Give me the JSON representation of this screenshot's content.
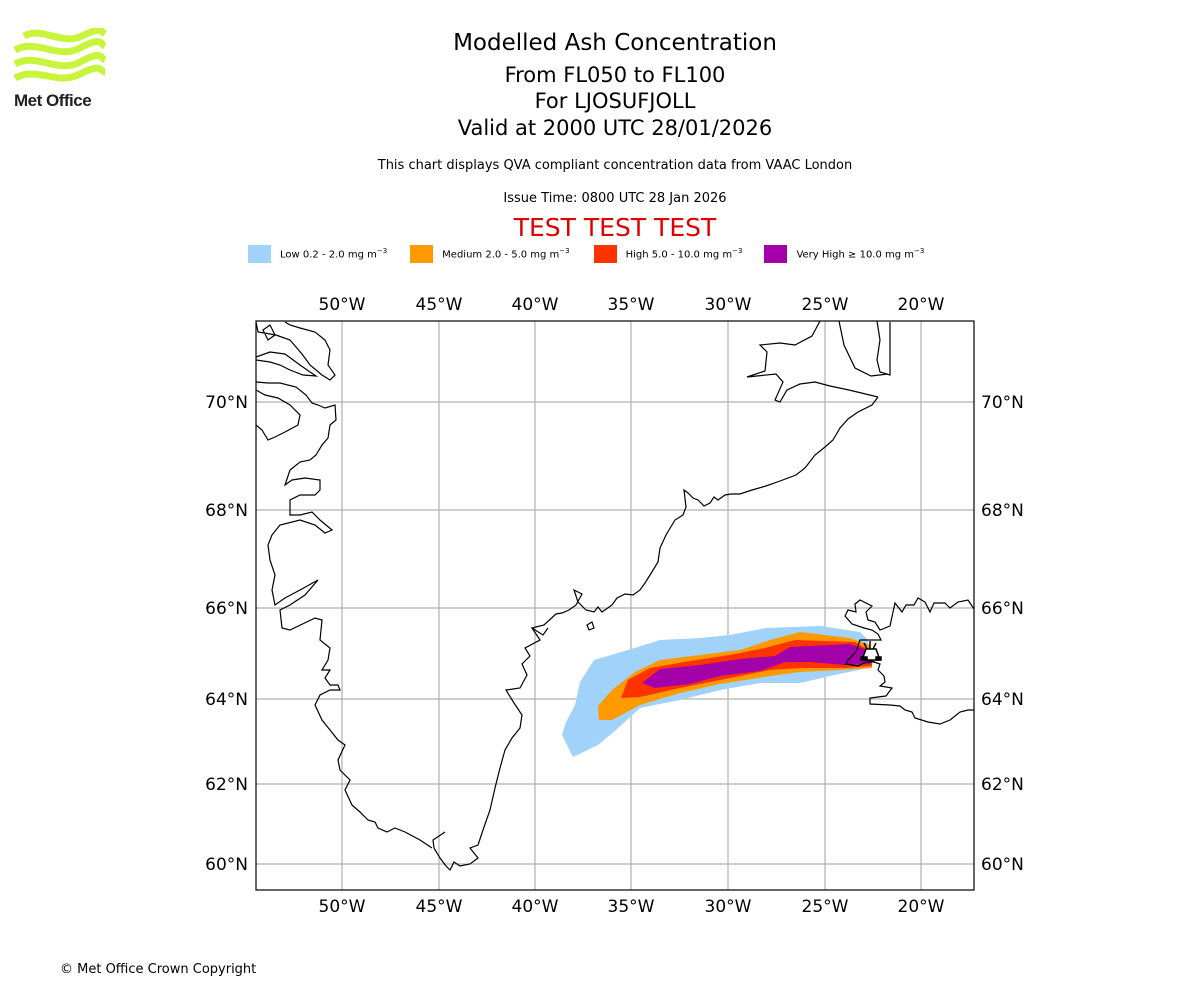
{
  "logo": {
    "name": "Met Office",
    "color": "#c8f53c"
  },
  "title": {
    "line1": "Modelled Ash Concentration",
    "line2": "From FL050 to FL100",
    "line3": "For LJOSUFJOLL",
    "line4": "Valid at 2000 UTC 28/01/2026"
  },
  "subtitle": "This chart displays QVA compliant concentration data from VAAC London",
  "issue_time": "Issue Time: 0800 UTC 28 Jan 2026",
  "test_banner": "TEST TEST TEST",
  "legend": [
    {
      "label": "Low 0.2 - 2.0 mg m",
      "exp": "−3",
      "color": "#a0d2fa"
    },
    {
      "label": "Medium 2.0 - 5.0 mg m",
      "exp": "−3",
      "color": "#ff9900"
    },
    {
      "label": "High 5.0 - 10.0 mg m",
      "exp": "−3",
      "color": "#ff3300"
    },
    {
      "label": "Very High ≥ 10.0 mg m",
      "exp": "−3",
      "color": "#a300aa"
    }
  ],
  "copyright": "© Met Office Crown Copyright",
  "chart_data": {
    "type": "heatmap",
    "title": "Modelled Ash Concentration",
    "xlabel": "",
    "ylabel": "",
    "x_ticks": [
      "50°W",
      "45°W",
      "40°W",
      "35°W",
      "30°W",
      "25°W",
      "20°W"
    ],
    "x_tick_values": [
      -50,
      -45,
      -40,
      -35,
      -30,
      -25,
      -20
    ],
    "y_ticks": [
      "70°N",
      "68°N",
      "66°N",
      "64°N",
      "62°N",
      "60°N"
    ],
    "y_tick_values": [
      70,
      68,
      66,
      64,
      62,
      60
    ],
    "xlim": [
      -54.5,
      -17.3
    ],
    "ylim": [
      59.4,
      71.6
    ],
    "grid": true,
    "source_marker": {
      "name": "LJOSUFJOLL",
      "lon": -22.7,
      "lat": 64.9
    },
    "plume_levels": [
      {
        "level": "Low",
        "range": "0.2 - 2.0 mg/m3",
        "lon_extent": [
          -38.6,
          -22.4
        ],
        "lat_extent": [
          62.6,
          65.6
        ]
      },
      {
        "level": "Medium",
        "range": "2.0 - 5.0 mg/m3",
        "lon_extent": [
          -36.7,
          -22.5
        ],
        "lat_extent": [
          63.8,
          65.4
        ]
      },
      {
        "level": "High",
        "range": "5.0 - 10.0 mg/m3",
        "lon_extent": [
          -35.6,
          -22.6
        ],
        "lat_extent": [
          64.0,
          65.3
        ]
      },
      {
        "level": "Very High",
        "range": ">= 10.0 mg/m3",
        "lon_extent": [
          -34.6,
          -22.7
        ],
        "lat_extent": [
          64.2,
          65.2
        ]
      }
    ]
  }
}
